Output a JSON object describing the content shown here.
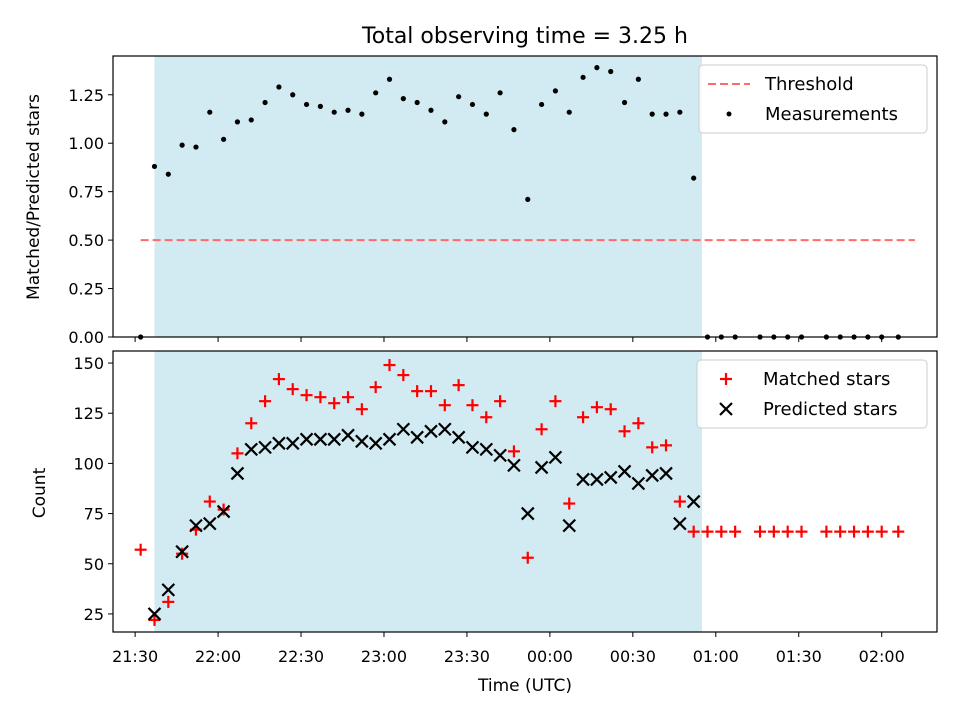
{
  "figure": {
    "title": "Total observing time = 3.25 h",
    "xlabel": "Time (UTC)"
  },
  "chart_data": [
    {
      "type": "scatter",
      "ylabel": "Matched/Predicted stars",
      "xlim": [
        "21:22",
        "02:20"
      ],
      "ylim": [
        0,
        1.45
      ],
      "yticks": [
        0.0,
        0.25,
        0.5,
        0.75,
        1.0,
        1.25
      ],
      "ytick_labels": [
        "0.00",
        "0.25",
        "0.50",
        "0.75",
        "1.00",
        "1.25"
      ],
      "shaded_interval": [
        "21:37",
        "00:55"
      ],
      "shade_color": "#add8e6",
      "legend_position": "top-right",
      "series": [
        {
          "name": "Threshold",
          "kind": "dashed-line",
          "color": "#ff6b6b",
          "x": [
            "21:32",
            "02:12"
          ],
          "y": [
            0.5,
            0.5
          ]
        },
        {
          "name": "Measurements",
          "kind": "dot",
          "color": "#000000",
          "x": [
            "21:32",
            "21:37",
            "21:42",
            "21:47",
            "21:52",
            "21:57",
            "22:02",
            "22:07",
            "22:12",
            "22:17",
            "22:22",
            "22:27",
            "22:32",
            "22:37",
            "22:42",
            "22:47",
            "22:52",
            "22:57",
            "23:02",
            "23:07",
            "23:12",
            "23:17",
            "23:22",
            "23:27",
            "23:32",
            "23:37",
            "23:42",
            "23:47",
            "23:52",
            "23:57",
            "00:02",
            "00:07",
            "00:12",
            "00:17",
            "00:22",
            "00:27",
            "00:32",
            "00:37",
            "00:42",
            "00:47",
            "00:52",
            "00:57",
            "01:02",
            "01:07",
            "01:16",
            "01:21",
            "01:26",
            "01:31",
            "01:40",
            "01:45",
            "01:50",
            "01:55",
            "02:00",
            "02:06"
          ],
          "y": [
            0.0,
            0.88,
            0.84,
            0.99,
            0.98,
            1.16,
            1.02,
            1.11,
            1.12,
            1.21,
            1.29,
            1.25,
            1.2,
            1.19,
            1.16,
            1.17,
            1.15,
            1.26,
            1.33,
            1.23,
            1.21,
            1.17,
            1.11,
            1.24,
            1.2,
            1.15,
            1.26,
            1.07,
            0.71,
            1.2,
            1.27,
            1.16,
            1.34,
            1.39,
            1.37,
            1.21,
            1.33,
            1.15,
            1.15,
            1.16,
            0.82,
            0.0,
            0.0,
            0.0,
            0.0,
            0.0,
            0.0,
            0.0,
            0.0,
            0.0,
            0.0,
            0.0,
            0.0,
            0.0
          ]
        }
      ]
    },
    {
      "type": "scatter",
      "ylabel": "Count",
      "xlim": [
        "21:22",
        "02:20"
      ],
      "ylim": [
        16,
        156
      ],
      "yticks": [
        25,
        50,
        75,
        100,
        125,
        150
      ],
      "ytick_labels": [
        "25",
        "50",
        "75",
        "100",
        "125",
        "150"
      ],
      "xticks": [
        "21:30",
        "22:00",
        "22:30",
        "23:00",
        "23:30",
        "00:00",
        "00:30",
        "01:00",
        "01:30",
        "02:00"
      ],
      "shaded_interval": [
        "21:37",
        "00:55"
      ],
      "shade_color": "#add8e6",
      "legend_position": "top-right",
      "series": [
        {
          "name": "Matched stars",
          "kind": "plus",
          "color": "#ff0000",
          "x": [
            "21:32",
            "21:37",
            "21:42",
            "21:47",
            "21:52",
            "21:57",
            "22:02",
            "22:07",
            "22:12",
            "22:17",
            "22:22",
            "22:27",
            "22:32",
            "22:37",
            "22:42",
            "22:47",
            "22:52",
            "22:57",
            "23:02",
            "23:07",
            "23:12",
            "23:17",
            "23:22",
            "23:27",
            "23:32",
            "23:37",
            "23:42",
            "23:47",
            "23:52",
            "23:57",
            "00:02",
            "00:07",
            "00:12",
            "00:17",
            "00:22",
            "00:27",
            "00:32",
            "00:37",
            "00:42",
            "00:47",
            "00:52",
            "00:57",
            "01:02",
            "01:07",
            "01:16",
            "01:21",
            "01:26",
            "01:31",
            "01:40",
            "01:45",
            "01:50",
            "01:55",
            "02:00",
            "02:06"
          ],
          "y": [
            57,
            22,
            31,
            55,
            67,
            81,
            77,
            105,
            120,
            131,
            142,
            137,
            134,
            133,
            130,
            133,
            127,
            138,
            149,
            144,
            136,
            136,
            129,
            139,
            129,
            123,
            131,
            106,
            53,
            117,
            131,
            80,
            123,
            128,
            127,
            116,
            120,
            108,
            109,
            81,
            66,
            66,
            66,
            66,
            66,
            66,
            66,
            66,
            66,
            66,
            66,
            66,
            66,
            66
          ]
        },
        {
          "name": "Predicted stars",
          "kind": "x",
          "color": "#000000",
          "x": [
            "21:37",
            "21:42",
            "21:47",
            "21:52",
            "21:57",
            "22:02",
            "22:07",
            "22:12",
            "22:17",
            "22:22",
            "22:27",
            "22:32",
            "22:37",
            "22:42",
            "22:47",
            "22:52",
            "22:57",
            "23:02",
            "23:07",
            "23:12",
            "23:17",
            "23:22",
            "23:27",
            "23:32",
            "23:37",
            "23:42",
            "23:47",
            "23:52",
            "23:57",
            "00:02",
            "00:07",
            "00:12",
            "00:17",
            "00:22",
            "00:27",
            "00:32",
            "00:37",
            "00:42",
            "00:47",
            "00:52"
          ],
          "y": [
            25,
            37,
            56,
            69,
            70,
            76,
            95,
            107,
            108,
            110,
            110,
            112,
            112,
            112,
            114,
            111,
            110,
            112,
            117,
            113,
            116,
            117,
            113,
            108,
            107,
            104,
            99,
            75,
            98,
            103,
            69,
            92,
            92,
            93,
            96,
            90,
            94,
            95,
            70,
            81
          ]
        }
      ]
    }
  ]
}
